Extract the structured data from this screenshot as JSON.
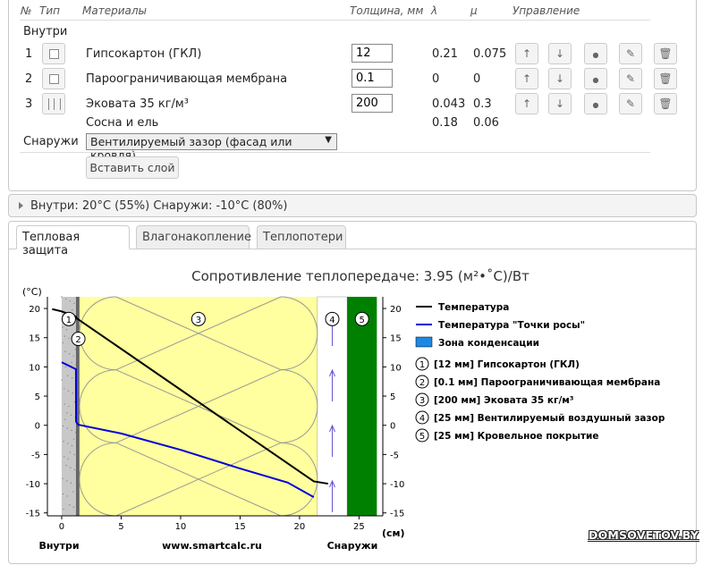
{
  "table": {
    "headers": {
      "num": "№",
      "type": "Тип",
      "material": "Материалы",
      "thickness": "Толщина, мм",
      "lambda": "λ",
      "mu": "μ",
      "control": "Управление"
    },
    "inside_label": "Внутри",
    "outside_label": "Снаружи",
    "rows": [
      {
        "num": "1",
        "type": "square",
        "name": "Гипсокартон (ГКЛ)",
        "thickness": "12",
        "lambda": "0.21",
        "mu": "0.075"
      },
      {
        "num": "2",
        "type": "square",
        "name": "Пароограничивающая мембрана",
        "thickness": "0.1",
        "lambda": "0",
        "mu": "0"
      },
      {
        "num": "3",
        "type": "bars",
        "name": "Эковата 35 кг/м³",
        "thickness": "200",
        "lambda": "0.043",
        "mu": "0.3"
      }
    ],
    "extra_row": {
      "name": "Сосна и ель",
      "lambda": "0.18",
      "mu": "0.06"
    },
    "outside_select": "Вентилируемый зазор (фасад или кровля)",
    "insert_button": "Вставить слой",
    "control_icons": [
      "arrow-up-icon",
      "arrow-down-icon",
      "dot-icon",
      "pencil-icon",
      "trash-icon"
    ]
  },
  "conditions": "Внутри: 20°C (55%) Снаружи: -10°C (80%)",
  "tabs": [
    {
      "label": "Тепловая защита",
      "active": true
    },
    {
      "label": "Влагонакопление",
      "active": false
    },
    {
      "label": "Теплопотери",
      "active": false
    }
  ],
  "chart_data": {
    "type": "line",
    "title": "Сопротивление теплопередаче: 3.95 (м²•˚C)/Вт",
    "ylabel": "(°C)",
    "xlabel": "(см)",
    "x_ticks": [
      "0",
      "5",
      "10",
      "15",
      "20",
      "25"
    ],
    "y_ticks": [
      "20",
      "15",
      "10",
      "5",
      "0",
      "-5",
      "-10",
      "-15"
    ],
    "xlim": [
      -1.2,
      27
    ],
    "ylim": [
      -15.5,
      22
    ],
    "left_bottom_label": "Внутри",
    "center_bottom_label": "www.smartcalc.ru",
    "right_bottom_label": "Снаружи",
    "series": [
      {
        "name": "Температура",
        "color": "#000000",
        "x": [
          -0.8,
          0,
          1.2,
          1.21,
          21.2,
          22.4
        ],
        "y": [
          19.9,
          19.5,
          18.6,
          18.4,
          -9.6,
          -10
        ]
      },
      {
        "name": "Температура \"Точки росы\"",
        "color": "#0000dd",
        "x": [
          0,
          1.2,
          1.21,
          1.4,
          5,
          10,
          15,
          19,
          21.2
        ],
        "y": [
          10.8,
          9.6,
          0.6,
          0.1,
          -1.4,
          -4.2,
          -7.4,
          -9.8,
          -12.3
        ]
      }
    ],
    "condensation_zone_label": "Зона конденсации",
    "condensation_color": "#1e88e5",
    "layers": [
      {
        "n": "1",
        "label": "[12 мм] Гипсокартон (ГКЛ)",
        "x0": 0,
        "x1": 1.2,
        "color": "#c8c8c8"
      },
      {
        "n": "2",
        "label": "[0.1 мм] Пароограничивающая мембрана",
        "x0": 1.2,
        "x1": 1.5,
        "color": "#666666"
      },
      {
        "n": "3",
        "label": "[200 мм] Эковата 35 кг/м³",
        "x0": 1.5,
        "x1": 21.5,
        "color": "#ffff9f"
      },
      {
        "n": "4",
        "label": "[25 мм] Вентилируемый воздушный зазор",
        "x0": 21.5,
        "x1": 24,
        "color": "#ffffff"
      },
      {
        "n": "5",
        "label": "[25 мм] Кровельное покрытие",
        "x0": 24,
        "x1": 26.5,
        "color": "#008000"
      }
    ]
  },
  "watermark": "DOMSOVETOV.BY"
}
